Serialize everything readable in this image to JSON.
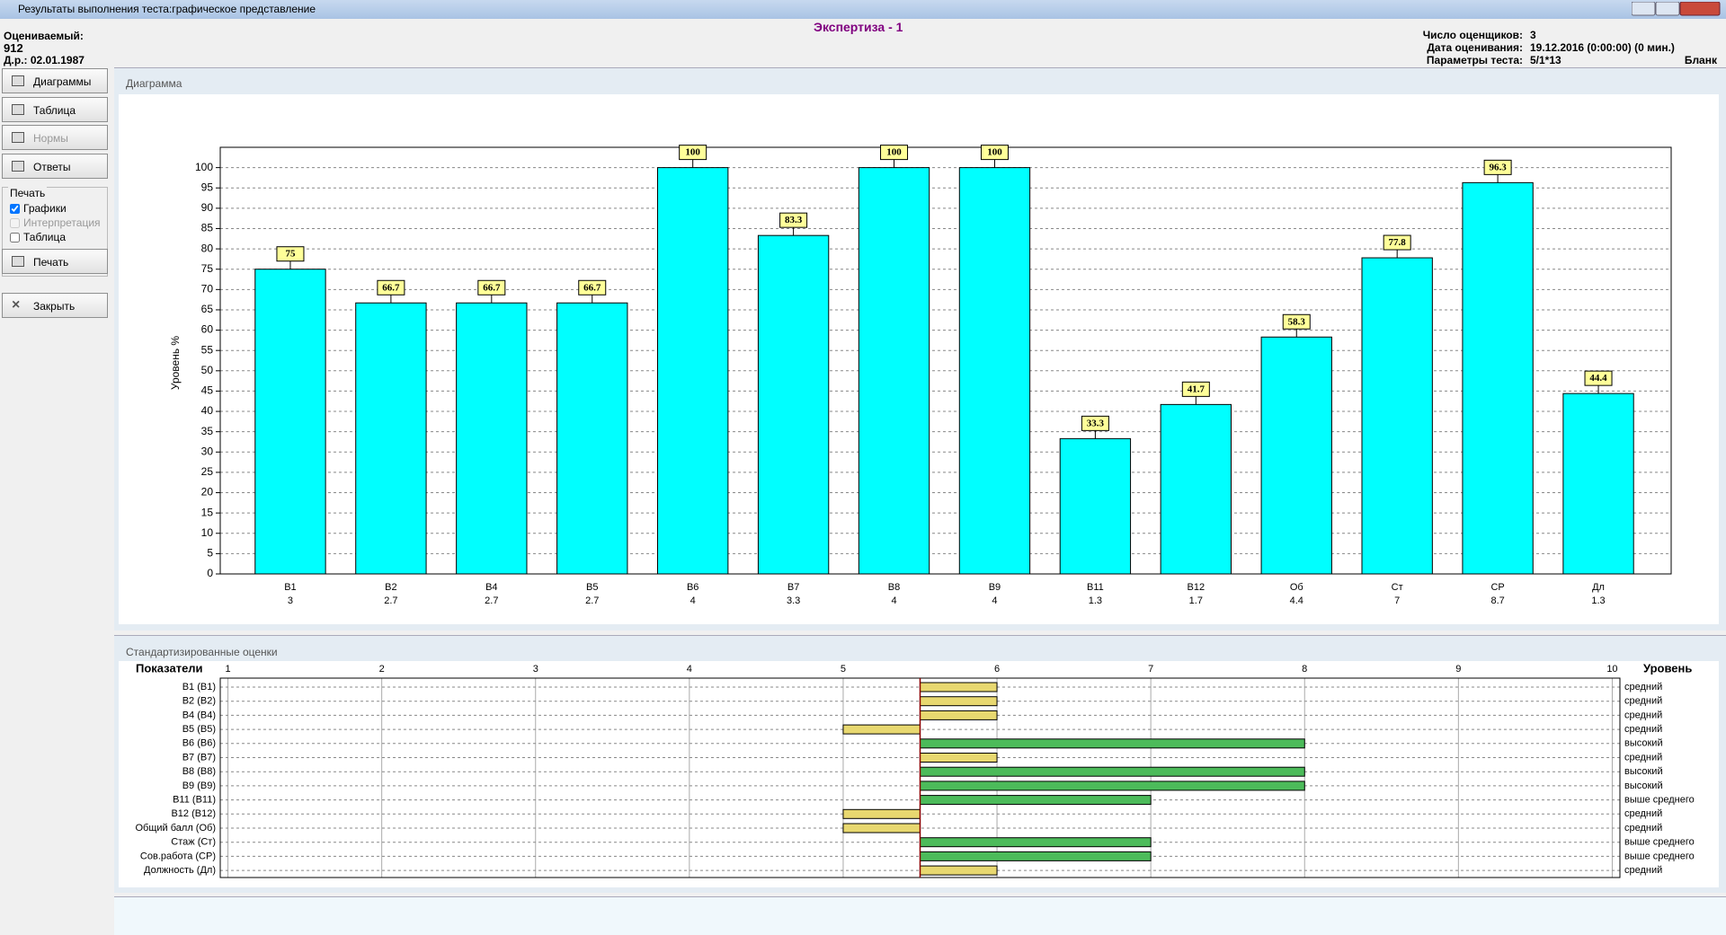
{
  "window": {
    "title": "Результаты выполнения теста:графическое представление"
  },
  "header": {
    "subject_label": "Оцениваемый:",
    "subject_id": "912",
    "birth_date": "Д.р.: 02.01.1987",
    "test_name": "Экспертиза - 1",
    "raters_label": "Число оценщиков:",
    "raters": "3",
    "date_label": "Дата оценивания:",
    "date": "19.12.2016 (0:00:00) (0 мин.)",
    "params_label": "Параметры теста:",
    "params": "5/1*13",
    "form": "Бланк"
  },
  "sidebar": {
    "buttons": [
      {
        "label": "Диаграммы",
        "enabled": true
      },
      {
        "label": "Таблица",
        "enabled": true
      },
      {
        "label": "Нормы",
        "enabled": false
      },
      {
        "label": "Ответы",
        "enabled": true
      }
    ],
    "print_group": "Печать",
    "print_options": [
      {
        "label": "Графики",
        "checked": true,
        "enabled": true
      },
      {
        "label": "Интерпретация",
        "checked": false,
        "enabled": false
      },
      {
        "label": "Таблица",
        "checked": false,
        "enabled": true
      }
    ],
    "print_button": "Печать",
    "close_button": "Закрыть"
  },
  "panels": {
    "diagram": "Диаграмма",
    "standardized": "Стандартизированные оценки"
  },
  "chart_data": [
    {
      "type": "bar",
      "ylabel": "Уровень %",
      "categories": [
        "В1",
        "В2",
        "В4",
        "В5",
        "В6",
        "В7",
        "В8",
        "В9",
        "В11",
        "В12",
        "Об",
        "Ст",
        "СР",
        "Дл"
      ],
      "scores": [
        3,
        2.7,
        2.7,
        2.7,
        4,
        3.3,
        4,
        4,
        1.3,
        1.7,
        4.4,
        7,
        8.7,
        1.3
      ],
      "values": [
        75,
        66.7,
        66.7,
        66.7,
        100,
        83.3,
        100,
        100,
        33.3,
        41.7,
        58.3,
        77.8,
        96.3,
        44.4
      ],
      "color": "#00ffff",
      "label_color": "#ffff99",
      "ylim": [
        0,
        105
      ],
      "yticks": [
        0,
        5,
        10,
        15,
        20,
        25,
        30,
        35,
        40,
        45,
        50,
        55,
        60,
        65,
        70,
        75,
        80,
        85,
        90,
        95,
        100
      ],
      "grid": true
    },
    {
      "type": "hbar",
      "header_left": "Показатели",
      "header_right": "Уровень",
      "categories": [
        "В1 (В1)",
        "В2 (В2)",
        "В4 (В4)",
        "В5 (В5)",
        "В6 (В6)",
        "В7 (В7)",
        "В8 (В8)",
        "В9 (В9)",
        "В11 (В11)",
        "В12 (В12)",
        "Общий балл (Об)",
        "Стаж (Ст)",
        "Сов.работа (СР)",
        "Должность (Дл)"
      ],
      "values": [
        6,
        6,
        6,
        5,
        8,
        6,
        8,
        8,
        7,
        5,
        5,
        7,
        7,
        6
      ],
      "colors": [
        "#e8d870",
        "#e8d870",
        "#e8d870",
        "#e8d870",
        "#4cbb5a",
        "#e8d870",
        "#4cbb5a",
        "#4cbb5a",
        "#4cbb5a",
        "#e8d870",
        "#e8d870",
        "#4cbb5a",
        "#4cbb5a",
        "#e8d870"
      ],
      "levels": [
        "средний",
        "средний",
        "средний",
        "средний",
        "высокий",
        "средний",
        "высокий",
        "высокий",
        "выше среднего",
        "средний",
        "средний",
        "выше среднего",
        "выше среднего",
        "средний"
      ],
      "baseline": 5.5,
      "xlim": [
        0.95,
        10.05
      ],
      "xticks": [
        1,
        2,
        3,
        4,
        5,
        6,
        7,
        8,
        9,
        10
      ],
      "grid": true
    }
  ]
}
